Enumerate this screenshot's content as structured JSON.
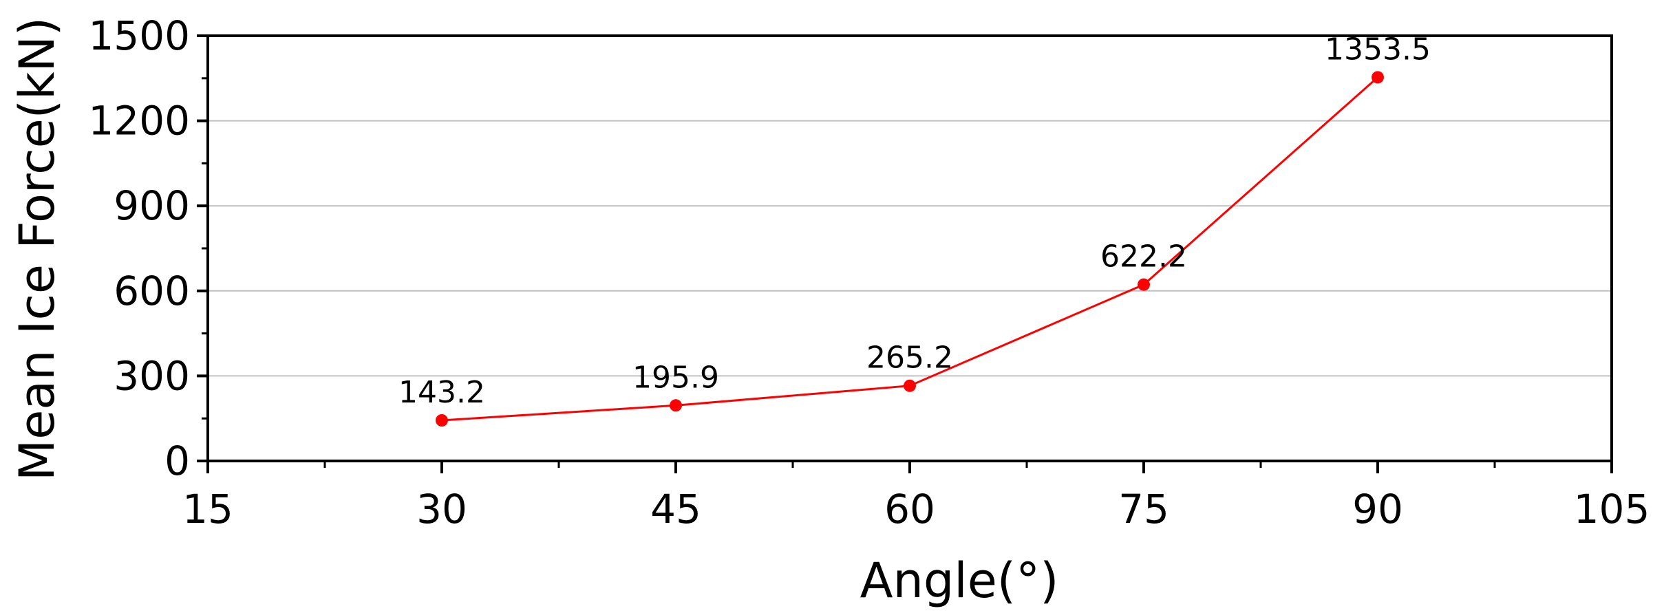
{
  "chart_data": {
    "type": "line",
    "title": "",
    "xlabel": "Angle(°)",
    "ylabel": "Mean Ice Force(kN)",
    "xlim": [
      15,
      105
    ],
    "ylim": [
      0,
      1500
    ],
    "xticks": [
      15,
      30,
      45,
      60,
      75,
      90,
      105
    ],
    "xtick_labels": [
      "15",
      "30",
      "45",
      "60",
      "75",
      "90",
      "105"
    ],
    "yticks": [
      0,
      300,
      600,
      900,
      1200,
      1500
    ],
    "ytick_labels": [
      "0",
      "300",
      "600",
      "900",
      "1200",
      "1500"
    ],
    "grid": "horizontal",
    "series": [
      {
        "color": "#ff0000",
        "x": [
          30,
          45,
          60,
          75,
          90
        ],
        "y": [
          143.2,
          195.9,
          265.2,
          622.2,
          1353.5
        ],
        "labels": [
          "143.2",
          "195.9",
          "265.2",
          "622.2",
          "1353.5"
        ]
      }
    ],
    "colors": {
      "series": "#ff0000",
      "grid": "#c0c0c0",
      "axis": "#000000"
    }
  }
}
